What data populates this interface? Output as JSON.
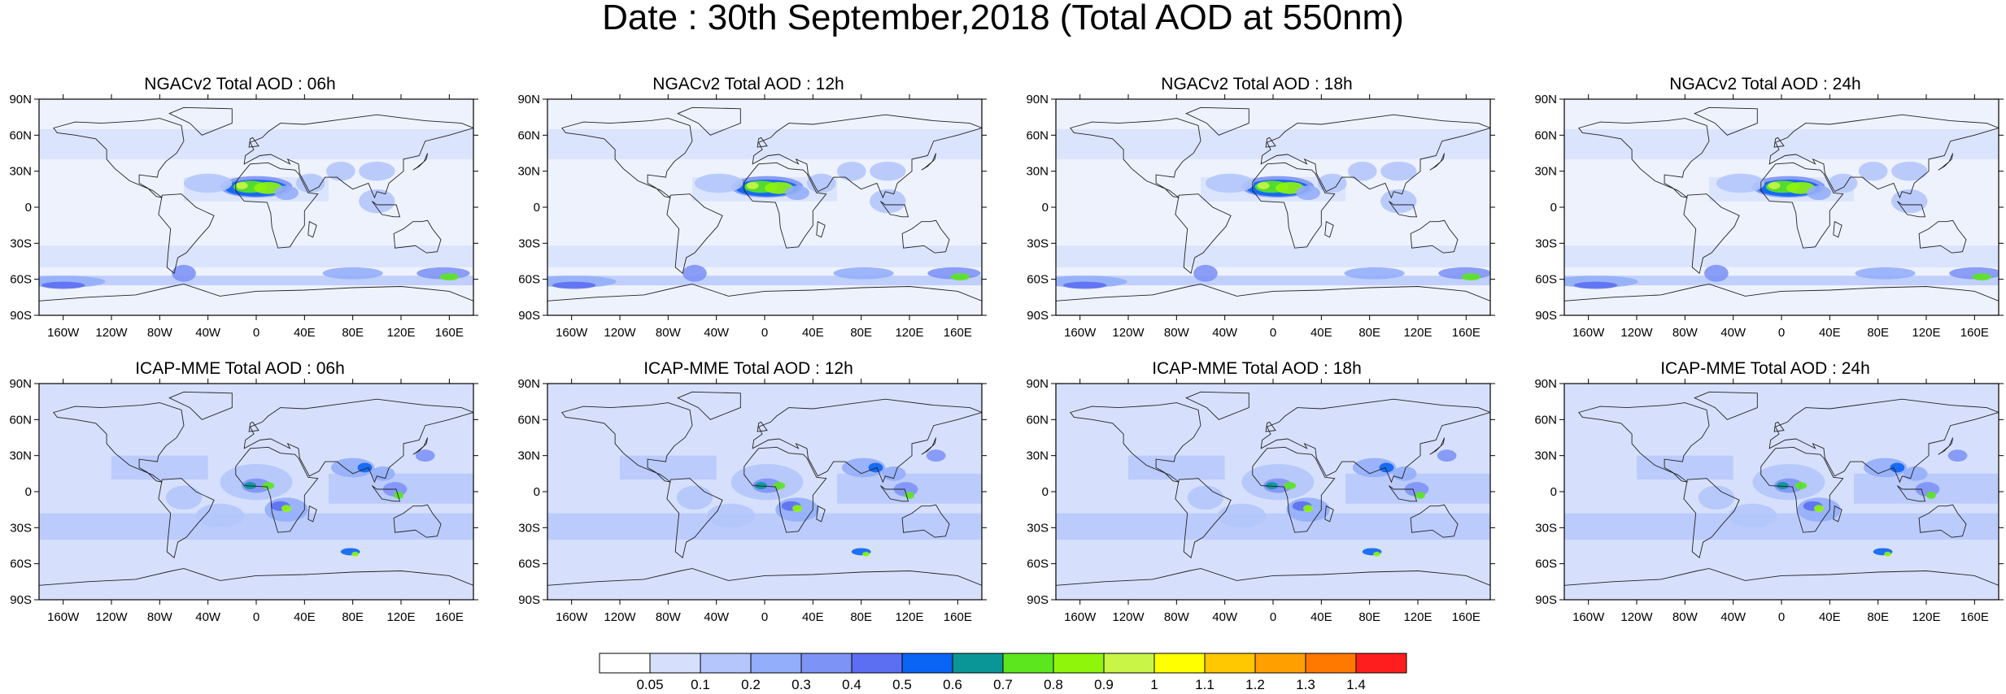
{
  "title": "Date : 30th September,2018 (Total AOD at 550nm)",
  "lat_ticks": [
    "90N",
    "60N",
    "30N",
    "0",
    "30S",
    "60S",
    "90S"
  ],
  "lon_ticks": [
    "160W",
    "120W",
    "80W",
    "40W",
    "0",
    "40E",
    "80E",
    "120E",
    "160E"
  ],
  "lon_tick_values": [
    -160,
    -120,
    -80,
    -40,
    0,
    40,
    80,
    120,
    160
  ],
  "lat_tick_values": [
    90,
    60,
    30,
    0,
    -30,
    -60,
    -90
  ],
  "panels": [
    {
      "title": "NGACv2 Total AOD : 06h",
      "model": "NGAC",
      "hour": 6
    },
    {
      "title": "NGACv2 Total AOD : 12h",
      "model": "NGAC",
      "hour": 12
    },
    {
      "title": "NGACv2 Total AOD : 18h",
      "model": "NGAC",
      "hour": 18
    },
    {
      "title": "NGACv2 Total AOD : 24h",
      "model": "NGAC",
      "hour": 24
    },
    {
      "title": "ICAP-MME Total AOD : 06h",
      "model": "ICAP",
      "hour": 6
    },
    {
      "title": "ICAP-MME Total AOD : 12h",
      "model": "ICAP",
      "hour": 12
    },
    {
      "title": "ICAP-MME Total AOD : 18h",
      "model": "ICAP",
      "hour": 18
    },
    {
      "title": "ICAP-MME Total AOD : 24h",
      "model": "ICAP",
      "hour": 24
    }
  ],
  "colorbar": {
    "labels": [
      "0.05",
      "0.1",
      "0.2",
      "0.3",
      "0.4",
      "0.5",
      "0.6",
      "0.7",
      "0.8",
      "0.9",
      "1",
      "1.1",
      "1.2",
      "1.3",
      "1.4"
    ],
    "colors": [
      "#ffffff",
      "#d6e0fc",
      "#b4c6fb",
      "#93aefa",
      "#7e93f6",
      "#5c6ff2",
      "#0a64f4",
      "#0a9696",
      "#5ce61e",
      "#8ff50a",
      "#c8f546",
      "#ffff00",
      "#ffc800",
      "#ffa000",
      "#ff7800",
      "#ff1e1e"
    ]
  }
}
